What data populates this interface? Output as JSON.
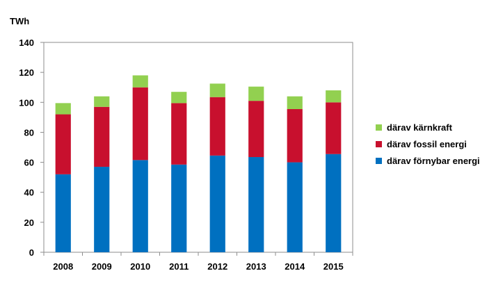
{
  "chart_data": {
    "type": "bar",
    "stacked": true,
    "unit_label": "TWh",
    "categories": [
      "2008",
      "2009",
      "2010",
      "2011",
      "2012",
      "2013",
      "2014",
      "2015"
    ],
    "series": [
      {
        "name": "därav förnybar energi",
        "color": "#0070c0",
        "values": [
          52,
          57,
          61.5,
          58.5,
          64.5,
          63.5,
          60,
          65.5
        ]
      },
      {
        "name": "därav fossil energi",
        "color": "#c8102e",
        "values": [
          40,
          40,
          48.5,
          41,
          39,
          37.5,
          35.5,
          34.5
        ]
      },
      {
        "name": "därav kärnkraft",
        "color": "#92d050",
        "values": [
          7.5,
          7,
          8,
          7.5,
          9,
          9.5,
          8.5,
          8
        ]
      }
    ],
    "ylim": [
      0,
      140
    ],
    "yticks": [
      0,
      20,
      40,
      60,
      80,
      100,
      120,
      140
    ],
    "grid": false,
    "legend_placement": "right",
    "legend_order": [
      "därav kärnkraft",
      "därav fossil energi",
      "därav förnybar energi"
    ]
  }
}
